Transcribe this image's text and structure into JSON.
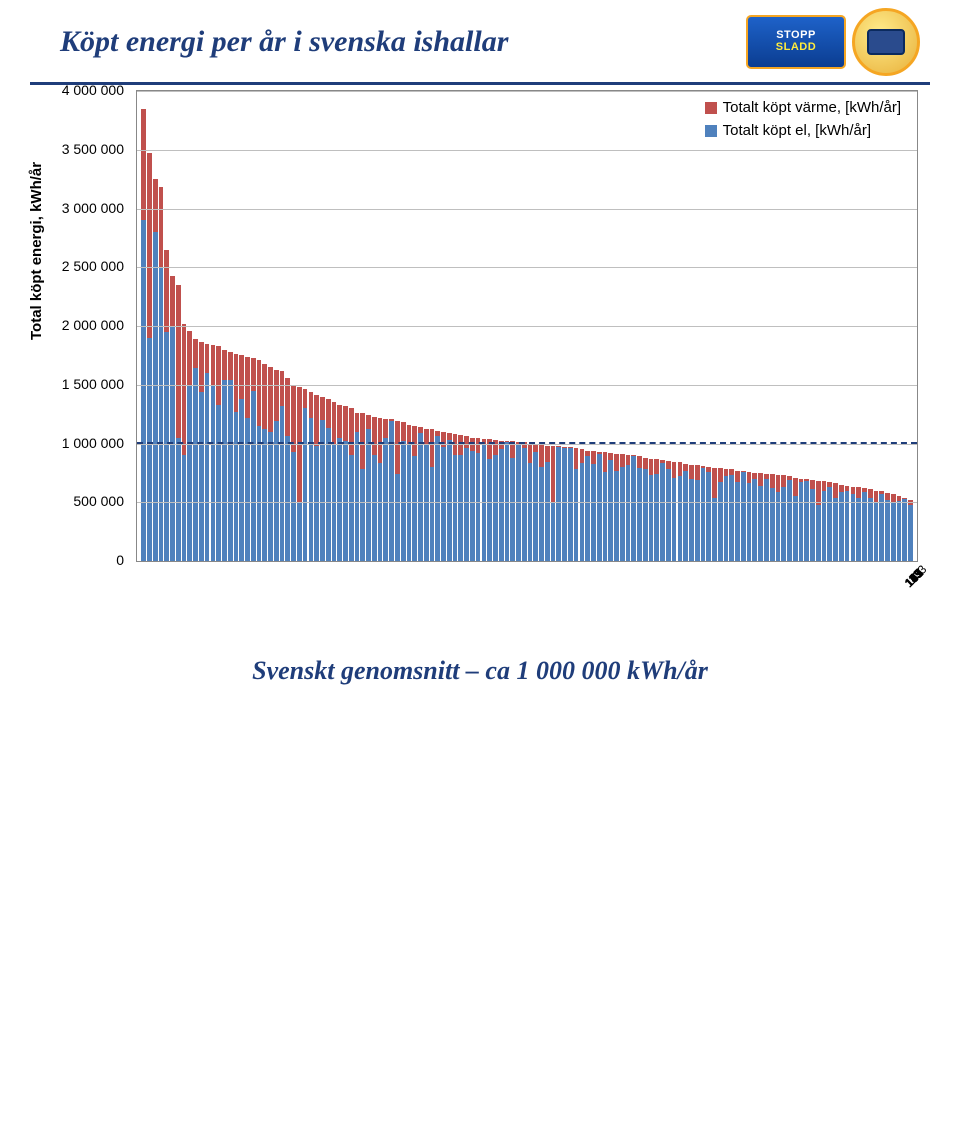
{
  "title": "Köpt energi per år i svenska ishallar",
  "footer": "Svenskt genomsnitt – ca 1 000 000 kWh/år",
  "logos": {
    "stopp_line1": "STOPP",
    "stopp_line2": "SLADD"
  },
  "colors": {
    "title": "#1f3d7a",
    "rule": "#1f3d7a",
    "warme": "#c0504d",
    "el": "#4f81bd",
    "avg_line": "#1f3d7a",
    "grid": "#bfbfbf",
    "axis": "#888888",
    "background": "#ffffff",
    "text": "#000000"
  },
  "chart": {
    "type": "stacked-bar",
    "y_axis_title": "Total köpt energi, kWh/år",
    "ylim": [
      0,
      4000000
    ],
    "ytick_step": 500000,
    "ytick_labels": [
      "0",
      "500 000",
      "1 000 000",
      "1 500 000",
      "2 000 000",
      "2 500 000",
      "3 000 000",
      "3 500 000",
      "4 000 000"
    ],
    "label_fontsize": 14,
    "y_title_fontsize": 15,
    "x_tick_start": 1,
    "x_tick_step": 4,
    "x_tick_end": 133,
    "avg_value": 1000000,
    "legend": {
      "warme": "Totalt köpt värme, [kWh/år]",
      "el": "Totalt köpt el, [kWh/år]"
    },
    "series": [
      {
        "el": 2900000,
        "warme": 950000
      },
      {
        "el": 1900000,
        "warme": 1570000
      },
      {
        "el": 2800000,
        "warme": 450000
      },
      {
        "el": 2500000,
        "warme": 680000
      },
      {
        "el": 1950000,
        "warme": 700000
      },
      {
        "el": 2000000,
        "warme": 430000
      },
      {
        "el": 1050000,
        "warme": 1300000
      },
      {
        "el": 900000,
        "warme": 1120000
      },
      {
        "el": 1500000,
        "warme": 460000
      },
      {
        "el": 1640000,
        "warme": 250000
      },
      {
        "el": 1440000,
        "warme": 420000
      },
      {
        "el": 1600000,
        "warme": 250000
      },
      {
        "el": 1500000,
        "warme": 340000
      },
      {
        "el": 1330000,
        "warme": 500000
      },
      {
        "el": 1540000,
        "warme": 260000
      },
      {
        "el": 1540000,
        "warme": 240000
      },
      {
        "el": 1270000,
        "warme": 490000
      },
      {
        "el": 1380000,
        "warme": 370000
      },
      {
        "el": 1220000,
        "warme": 520000
      },
      {
        "el": 1450000,
        "warme": 280000
      },
      {
        "el": 1150000,
        "warme": 560000
      },
      {
        "el": 1120000,
        "warme": 560000
      },
      {
        "el": 1100000,
        "warme": 550000
      },
      {
        "el": 1190000,
        "warme": 440000
      },
      {
        "el": 1320000,
        "warme": 300000
      },
      {
        "el": 1060000,
        "warme": 500000
      },
      {
        "el": 930000,
        "warme": 570000
      },
      {
        "el": 500000,
        "warme": 980000
      },
      {
        "el": 1300000,
        "warme": 160000
      },
      {
        "el": 1220000,
        "warme": 220000
      },
      {
        "el": 980000,
        "warme": 430000
      },
      {
        "el": 1200000,
        "warme": 200000
      },
      {
        "el": 1130000,
        "warme": 250000
      },
      {
        "el": 990000,
        "warme": 360000
      },
      {
        "el": 1050000,
        "warme": 280000
      },
      {
        "el": 1020000,
        "warme": 300000
      },
      {
        "el": 900000,
        "warme": 400000
      },
      {
        "el": 1100000,
        "warme": 160000
      },
      {
        "el": 780000,
        "warme": 480000
      },
      {
        "el": 1120000,
        "warme": 120000
      },
      {
        "el": 900000,
        "warme": 330000
      },
      {
        "el": 830000,
        "warme": 390000
      },
      {
        "el": 1050000,
        "warme": 160000
      },
      {
        "el": 1190000,
        "warme": 20000
      },
      {
        "el": 740000,
        "warme": 450000
      },
      {
        "el": 1020000,
        "warme": 160000
      },
      {
        "el": 990000,
        "warme": 170000
      },
      {
        "el": 890000,
        "warme": 260000
      },
      {
        "el": 1090000,
        "warme": 50000
      },
      {
        "el": 1000000,
        "warme": 120000
      },
      {
        "el": 800000,
        "warme": 320000
      },
      {
        "el": 1060000,
        "warme": 50000
      },
      {
        "el": 970000,
        "warme": 130000
      },
      {
        "el": 1030000,
        "warme": 60000
      },
      {
        "el": 900000,
        "warme": 180000
      },
      {
        "el": 900000,
        "warme": 170000
      },
      {
        "el": 960000,
        "warme": 100000
      },
      {
        "el": 940000,
        "warme": 110000
      },
      {
        "el": 920000,
        "warme": 130000
      },
      {
        "el": 1000000,
        "warme": 40000
      },
      {
        "el": 870000,
        "warme": 170000
      },
      {
        "el": 900000,
        "warme": 130000
      },
      {
        "el": 950000,
        "warme": 70000
      },
      {
        "el": 1010000,
        "warme": 10000
      },
      {
        "el": 880000,
        "warme": 140000
      },
      {
        "el": 990000,
        "warme": 20000
      },
      {
        "el": 960000,
        "warme": 50000
      },
      {
        "el": 830000,
        "warme": 170000
      },
      {
        "el": 930000,
        "warme": 70000
      },
      {
        "el": 800000,
        "warme": 190000
      },
      {
        "el": 840000,
        "warme": 140000
      },
      {
        "el": 500000,
        "warme": 480000
      },
      {
        "el": 970000,
        "warme": 10000
      },
      {
        "el": 960000,
        "warme": 10000
      },
      {
        "el": 960000,
        "warme": 10000
      },
      {
        "el": 780000,
        "warme": 180000
      },
      {
        "el": 830000,
        "warme": 120000
      },
      {
        "el": 890000,
        "warme": 50000
      },
      {
        "el": 830000,
        "warme": 110000
      },
      {
        "el": 910000,
        "warme": 20000
      },
      {
        "el": 760000,
        "warme": 170000
      },
      {
        "el": 860000,
        "warme": 60000
      },
      {
        "el": 770000,
        "warme": 140000
      },
      {
        "el": 800000,
        "warme": 110000
      },
      {
        "el": 820000,
        "warme": 80000
      },
      {
        "el": 890000,
        "warme": 10000
      },
      {
        "el": 790000,
        "warme": 100000
      },
      {
        "el": 780000,
        "warme": 100000
      },
      {
        "el": 730000,
        "warme": 140000
      },
      {
        "el": 740000,
        "warme": 130000
      },
      {
        "el": 830000,
        "warme": 30000
      },
      {
        "el": 780000,
        "warme": 70000
      },
      {
        "el": 710000,
        "warme": 130000
      },
      {
        "el": 720000,
        "warme": 120000
      },
      {
        "el": 770000,
        "warme": 60000
      },
      {
        "el": 700000,
        "warme": 120000
      },
      {
        "el": 690000,
        "warme": 130000
      },
      {
        "el": 790000,
        "warme": 20000
      },
      {
        "el": 760000,
        "warme": 40000
      },
      {
        "el": 540000,
        "warme": 250000
      },
      {
        "el": 670000,
        "warme": 120000
      },
      {
        "el": 720000,
        "warme": 60000
      },
      {
        "el": 730000,
        "warme": 50000
      },
      {
        "el": 670000,
        "warme": 100000
      },
      {
        "el": 760000,
        "warme": 10000
      },
      {
        "el": 660000,
        "warme": 100000
      },
      {
        "el": 700000,
        "warme": 50000
      },
      {
        "el": 640000,
        "warme": 110000
      },
      {
        "el": 700000,
        "warme": 40000
      },
      {
        "el": 620000,
        "warme": 120000
      },
      {
        "el": 590000,
        "warme": 140000
      },
      {
        "el": 630000,
        "warme": 100000
      },
      {
        "el": 690000,
        "warme": 30000
      },
      {
        "el": 550000,
        "warme": 160000
      },
      {
        "el": 670000,
        "warme": 30000
      },
      {
        "el": 680000,
        "warme": 20000
      },
      {
        "el": 610000,
        "warme": 80000
      },
      {
        "el": 480000,
        "warme": 200000
      },
      {
        "el": 600000,
        "warme": 80000
      },
      {
        "el": 630000,
        "warme": 40000
      },
      {
        "el": 540000,
        "warme": 120000
      },
      {
        "el": 590000,
        "warme": 60000
      },
      {
        "el": 600000,
        "warme": 40000
      },
      {
        "el": 570000,
        "warme": 60000
      },
      {
        "el": 540000,
        "warme": 90000
      },
      {
        "el": 590000,
        "warme": 30000
      },
      {
        "el": 540000,
        "warme": 70000
      },
      {
        "el": 500000,
        "warme": 100000
      },
      {
        "el": 570000,
        "warme": 30000
      },
      {
        "el": 520000,
        "warme": 60000
      },
      {
        "el": 500000,
        "warme": 70000
      },
      {
        "el": 510000,
        "warme": 40000
      },
      {
        "el": 530000,
        "warme": 10000
      },
      {
        "el": 480000,
        "warme": 40000
      }
    ]
  }
}
